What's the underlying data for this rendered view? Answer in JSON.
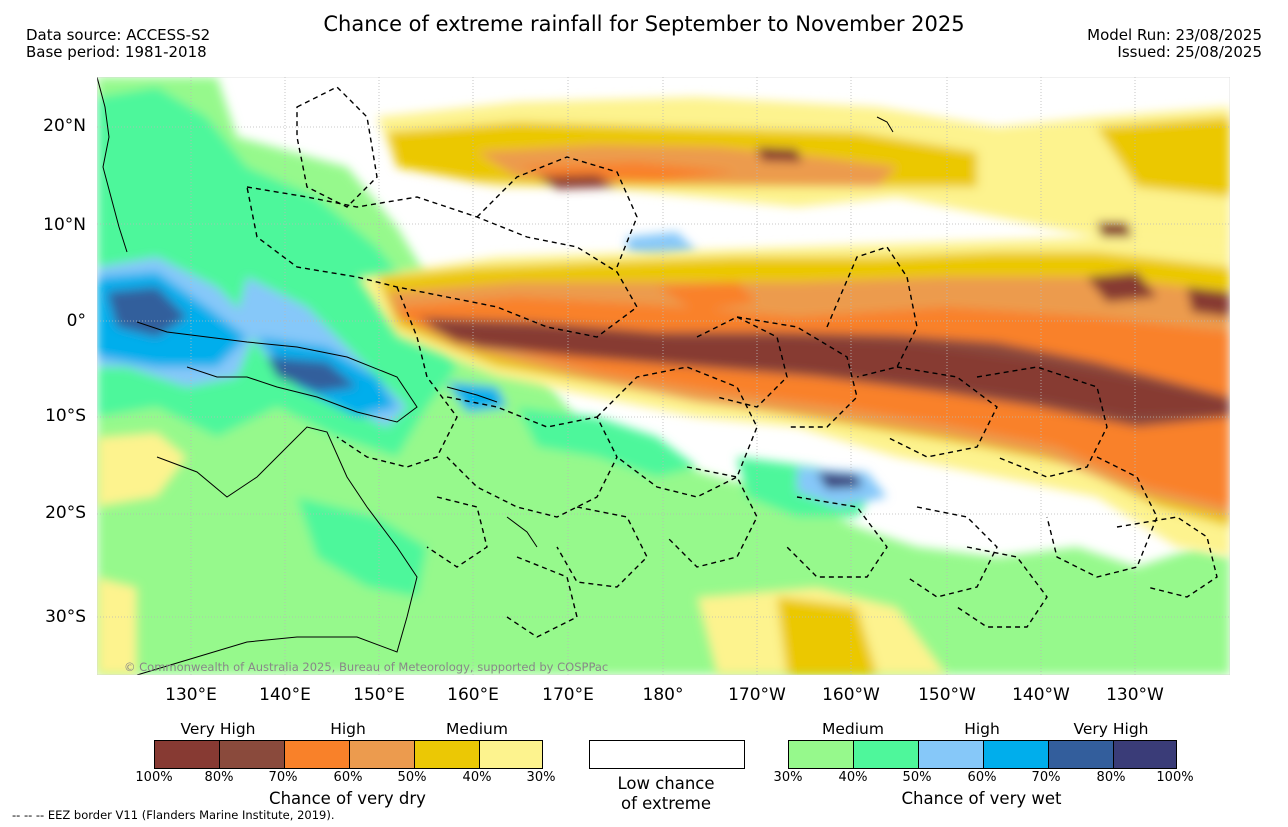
{
  "header": {
    "title": "Chance of extreme rainfall for September to November 2025",
    "data_source": "Data source: ACCESS-S2",
    "base_period": "Base period: 1981-2018",
    "model_run": "Model Run: 23/08/2025",
    "issued": "Issued: 25/08/2025"
  },
  "map": {
    "copyright": "© Commonwealth of Australia 2025, Bureau of Meteorology, supported by COSPPac",
    "lat_labels": [
      "20°N",
      "10°N",
      "0°",
      "10°S",
      "20°S",
      "30°S"
    ],
    "lon_labels": [
      "130°E",
      "140°E",
      "150°E",
      "160°E",
      "170°E",
      "180°",
      "170°W",
      "160°W",
      "150°W",
      "140°W",
      "130°W"
    ]
  },
  "legend": {
    "dry": {
      "headers": [
        "Very High",
        "High",
        "Medium"
      ],
      "colors": [
        "#873a33",
        "#8a4a3c",
        "#f98129",
        "#ec9b4e",
        "#ebc805",
        "#fdf38e"
      ],
      "ticks": [
        "100%",
        "80%",
        "70%",
        "60%",
        "50%",
        "40%",
        "30%"
      ],
      "caption": "Chance of very dry"
    },
    "neutral": {
      "caption_line1": "Low chance",
      "caption_line2": "of extreme"
    },
    "wet": {
      "headers": [
        "Medium",
        "High",
        "Very High"
      ],
      "colors": [
        "#96f98c",
        "#4ef79b",
        "#86c8f9",
        "#00aeec",
        "#335e9c",
        "#3a3c78"
      ],
      "ticks": [
        "30%",
        "40%",
        "50%",
        "60%",
        "70%",
        "80%",
        "100%"
      ],
      "caption": "Chance of very wet"
    }
  },
  "footnote": "--  --  -- EEZ border V11 (Flanders Marine Institute, 2019)."
}
